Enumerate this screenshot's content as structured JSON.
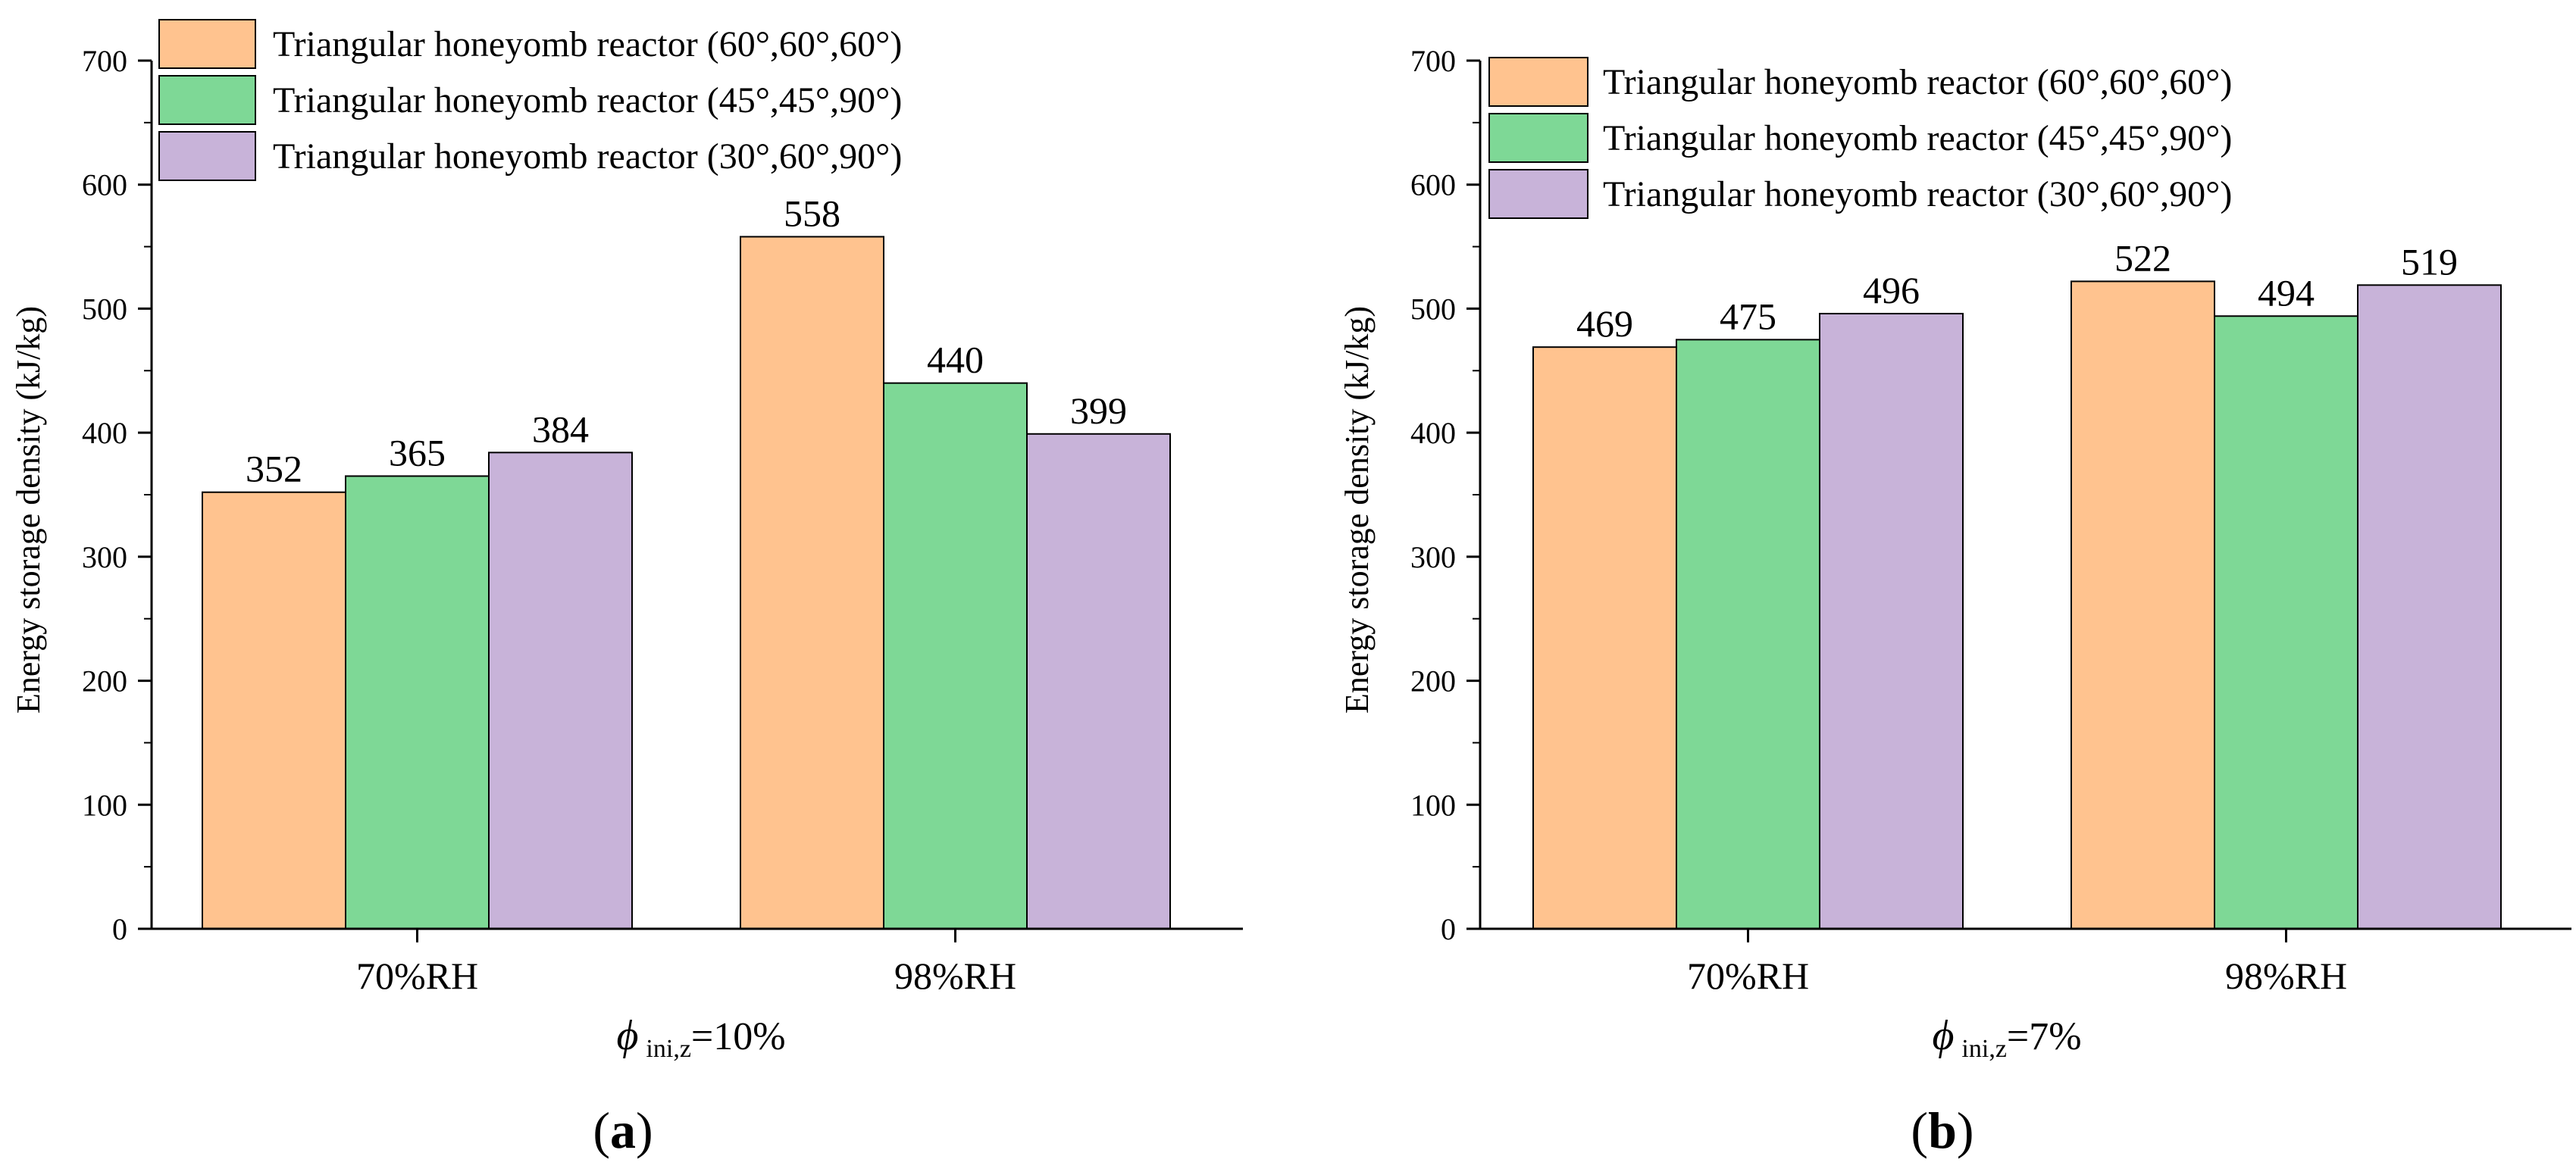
{
  "chart_data": [
    {
      "panel": "(a)",
      "panel_letter": "a",
      "type": "bar",
      "categories": [
        "70%RH",
        "98%RH"
      ],
      "series": [
        {
          "name": "Triangular honeyomb reactor (60°,60°,60°)",
          "color": "#FFC38F",
          "values": [
            352,
            558
          ]
        },
        {
          "name": "Triangular honeyomb reactor (45°,45°,90°)",
          "color": "#7ED896",
          "values": [
            365,
            440
          ]
        },
        {
          "name": "Triangular honeyomb reactor (30°,60°,90°)",
          "color": "#C8B3D9",
          "values": [
            384,
            399
          ]
        }
      ],
      "ylabel": "Energy storage density (kJ/kg)",
      "xtitle": {
        "symbol": "ϕ",
        "subscript": "ini,z",
        "value": "=10%"
      },
      "ylim": [
        0,
        700
      ],
      "yticks": [
        0,
        100,
        200,
        300,
        400,
        500,
        600,
        700
      ],
      "legend_position": "top-left"
    },
    {
      "panel": "(b)",
      "panel_letter": "b",
      "type": "bar",
      "categories": [
        "70%RH",
        "98%RH"
      ],
      "series": [
        {
          "name": "Triangular honeyomb reactor (60°,60°,60°)",
          "color": "#FFC38F",
          "values": [
            469,
            522
          ]
        },
        {
          "name": "Triangular honeyomb reactor (45°,45°,90°)",
          "color": "#7ED896",
          "values": [
            475,
            494
          ]
        },
        {
          "name": "Triangular honeyomb reactor (30°,60°,90°)",
          "color": "#C8B3D9",
          "values": [
            496,
            519
          ]
        }
      ],
      "ylabel": "Energy storage density (kJ/kg)",
      "xtitle": {
        "symbol": "ϕ",
        "subscript": "ini,z",
        "value": "=7%"
      },
      "ylim": [
        0,
        700
      ],
      "yticks": [
        0,
        100,
        200,
        300,
        400,
        500,
        600,
        700
      ],
      "legend_position": "top-left"
    }
  ]
}
